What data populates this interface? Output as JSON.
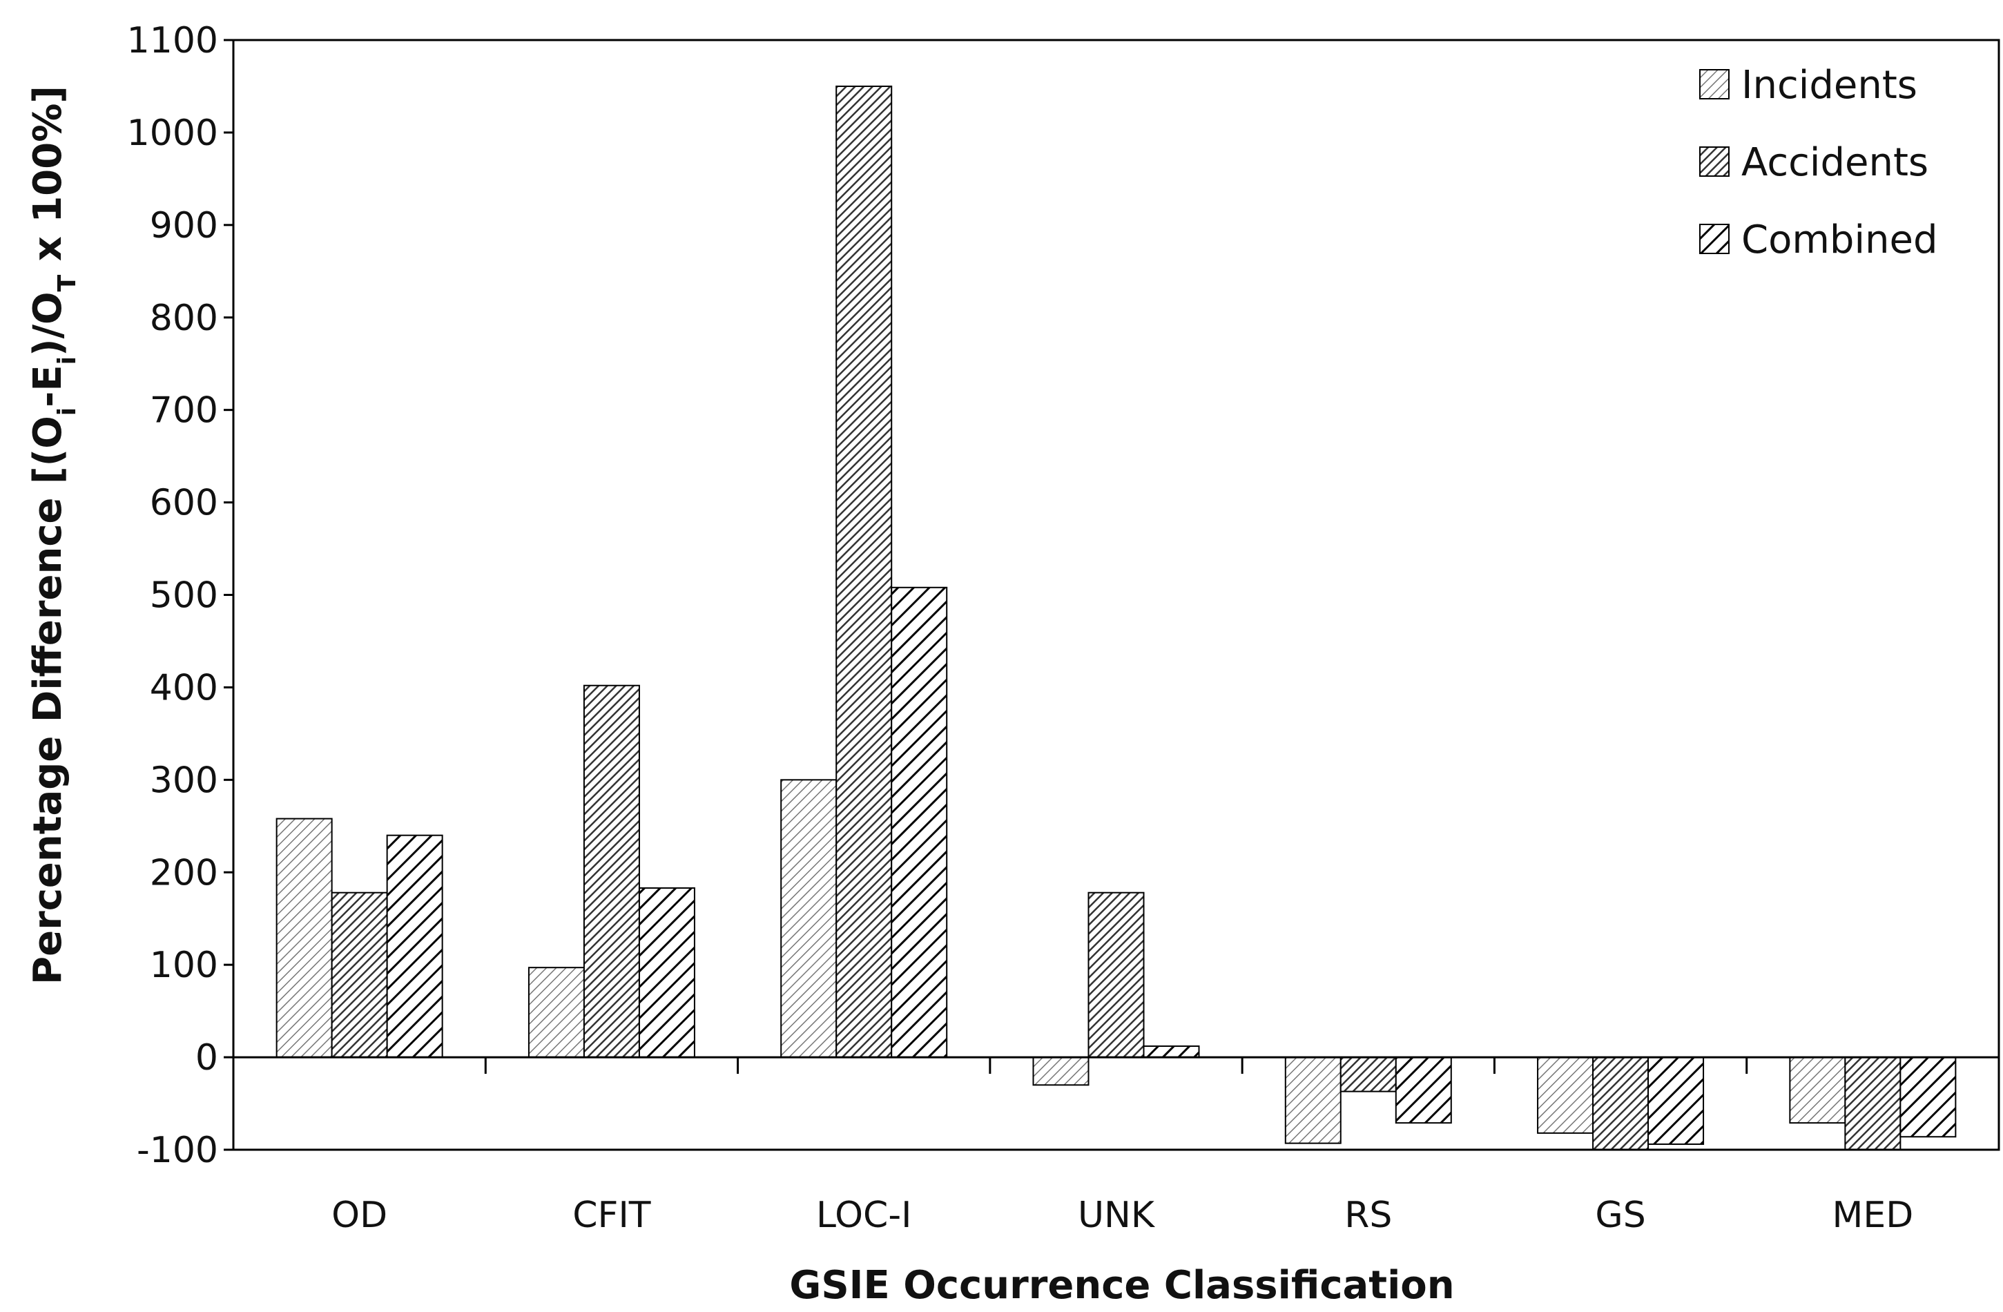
{
  "chart_data": {
    "type": "bar",
    "title": "",
    "xlabel": "GSIE Occurrence Classification",
    "ylabel": "Percentage Difference [(O_i-E_i)/O_T x 100%]",
    "ylabel_parts": {
      "p1": "Percentage Difference [(O",
      "s1": "i",
      "p2": "-E",
      "s2": "i",
      "p3": ")/O",
      "s3": "T",
      "p4": " x 100%]"
    },
    "ylim": [
      -100,
      1100
    ],
    "yticks": [
      -100,
      0,
      100,
      200,
      300,
      400,
      500,
      600,
      700,
      800,
      900,
      1000,
      1100
    ],
    "categories": [
      "OD",
      "CFIT",
      "LOC-I",
      "UNK",
      "RS",
      "GS",
      "MED"
    ],
    "series": [
      {
        "name": "Incidents",
        "values": [
          258,
          97,
          300,
          -30,
          -93,
          -82,
          -71
        ],
        "pattern": "thin-diagonal"
      },
      {
        "name": "Accidents",
        "values": [
          178,
          402,
          1050,
          178,
          -37,
          -100,
          -100
        ],
        "pattern": "dense-diagonal"
      },
      {
        "name": "Combined",
        "values": [
          240,
          183,
          508,
          12,
          -71,
          -94,
          -86
        ],
        "pattern": "bold-diagonal"
      }
    ],
    "grid": false,
    "legend": "top-right"
  }
}
